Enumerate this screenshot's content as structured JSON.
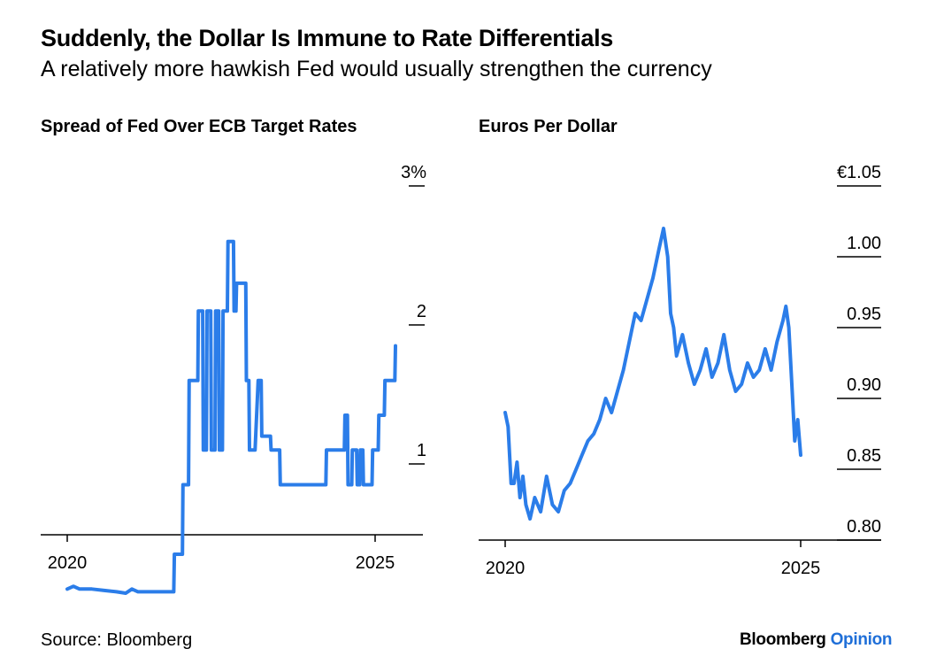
{
  "title": "Suddenly, the Dollar Is Immune to Rate Differentials",
  "subtitle": "A relatively more hawkish Fed would usually strengthen the currency",
  "source": "Source: Bloomberg",
  "brand": {
    "name": "Bloomberg",
    "suffix": "Opinion",
    "accent_color": "#1f6fd8"
  },
  "line_color": "#2b7de9",
  "chart_data": [
    {
      "type": "line",
      "title": "Spread of Fed Over ECB Target Rates",
      "xlabel": "",
      "ylabel": "",
      "x_ticks": [
        "2020",
        "2025"
      ],
      "y_ticks": [
        "3%",
        "2",
        "1"
      ],
      "xlim": [
        2020,
        2025.75
      ],
      "ylim": [
        0,
        3
      ],
      "y_axis_side": "right",
      "grid": false,
      "series": [
        {
          "x": [
            2020.0,
            2020.1,
            2020.2,
            2020.4,
            2020.6,
            2020.8,
            2020.95,
            2021.05,
            2021.15,
            2021.25,
            2021.35,
            2021.5,
            2021.6,
            2021.73,
            2021.74,
            2021.87,
            2021.88,
            2021.97,
            2021.98,
            2022.12,
            2022.13,
            2022.2,
            2022.21,
            2022.26,
            2022.27,
            2022.33,
            2022.34,
            2022.4,
            2022.41,
            2022.46,
            2022.47,
            2022.52,
            2022.53,
            2022.6,
            2022.61,
            2022.7,
            2022.71,
            2022.74,
            2022.75,
            2022.9,
            2022.91,
            2022.95,
            2022.96,
            2023.05,
            2023.1,
            2023.15,
            2023.16,
            2023.3,
            2023.31,
            2023.45,
            2023.46,
            2023.7,
            2024.0,
            2024.2,
            2024.21,
            2024.45,
            2024.5,
            2024.51,
            2024.55,
            2024.56,
            2024.62,
            2024.63,
            2024.7,
            2024.71,
            2024.75,
            2024.76,
            2024.8,
            2024.81,
            2024.95,
            2024.96,
            2025.05,
            2025.06,
            2025.15,
            2025.16,
            2025.25,
            2025.26,
            2025.32,
            2025.33
          ],
          "y": [
            0.1,
            0.12,
            0.1,
            0.1,
            0.09,
            0.08,
            0.07,
            0.1,
            0.08,
            0.08,
            0.08,
            0.08,
            0.08,
            0.08,
            0.35,
            0.35,
            0.85,
            0.85,
            1.6,
            1.6,
            2.1,
            2.1,
            1.1,
            1.1,
            2.1,
            2.1,
            1.1,
            1.1,
            2.1,
            2.1,
            1.1,
            1.1,
            2.1,
            2.1,
            2.6,
            2.6,
            2.1,
            2.1,
            2.3,
            2.3,
            1.6,
            1.6,
            1.1,
            1.1,
            1.6,
            1.6,
            1.2,
            1.2,
            1.1,
            1.1,
            0.85,
            0.85,
            0.85,
            0.85,
            1.1,
            1.1,
            1.1,
            1.35,
            1.35,
            0.85,
            0.85,
            1.1,
            1.1,
            0.85,
            0.85,
            1.1,
            1.1,
            0.85,
            0.85,
            1.1,
            1.1,
            1.35,
            1.35,
            1.6,
            1.6,
            1.6,
            1.6,
            1.85
          ]
        }
      ]
    },
    {
      "type": "line",
      "title": "Euros Per Dollar",
      "xlabel": "",
      "ylabel": "",
      "x_ticks": [
        "2020",
        "2025"
      ],
      "y_ticks": [
        "€1.05",
        "1.00",
        "0.95",
        "0.90",
        "0.85",
        "0.80"
      ],
      "xlim": [
        2020,
        2026.2
      ],
      "ylim": [
        0.8,
        1.05
      ],
      "y_axis_side": "right",
      "grid": false,
      "series": [
        {
          "x": [
            2020.0,
            2020.05,
            2020.1,
            2020.15,
            2020.2,
            2020.25,
            2020.3,
            2020.35,
            2020.42,
            2020.5,
            2020.6,
            2020.7,
            2020.8,
            2020.9,
            2021.0,
            2021.1,
            2021.2,
            2021.3,
            2021.4,
            2021.5,
            2021.6,
            2021.7,
            2021.8,
            2021.9,
            2022.0,
            2022.1,
            2022.2,
            2022.3,
            2022.4,
            2022.5,
            2022.6,
            2022.68,
            2022.75,
            2022.8,
            2022.85,
            2022.9,
            2023.0,
            2023.1,
            2023.2,
            2023.3,
            2023.4,
            2023.5,
            2023.6,
            2023.7,
            2023.8,
            2023.9,
            2024.0,
            2024.1,
            2024.2,
            2024.3,
            2024.4,
            2024.5,
            2024.6,
            2024.7,
            2024.75,
            2024.8,
            2024.85,
            2024.9,
            2024.95,
            2025.0
          ],
          "y": [
            0.89,
            0.88,
            0.84,
            0.84,
            0.855,
            0.83,
            0.845,
            0.825,
            0.815,
            0.83,
            0.82,
            0.845,
            0.825,
            0.82,
            0.835,
            0.84,
            0.85,
            0.86,
            0.87,
            0.875,
            0.885,
            0.9,
            0.89,
            0.905,
            0.92,
            0.94,
            0.96,
            0.955,
            0.97,
            0.985,
            1.005,
            1.02,
            1.0,
            0.96,
            0.95,
            0.93,
            0.945,
            0.925,
            0.91,
            0.92,
            0.935,
            0.915,
            0.925,
            0.945,
            0.92,
            0.905,
            0.91,
            0.925,
            0.915,
            0.92,
            0.935,
            0.92,
            0.94,
            0.955,
            0.965,
            0.95,
            0.91,
            0.87,
            0.885,
            0.86
          ]
        }
      ]
    }
  ]
}
